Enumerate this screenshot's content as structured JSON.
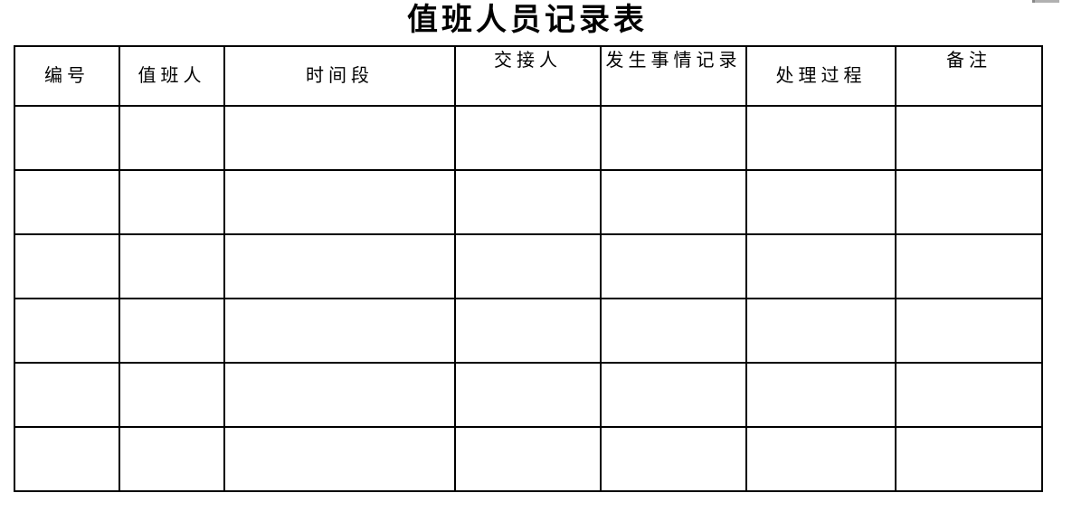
{
  "title": "值班人员记录表",
  "table": {
    "columns": [
      {
        "id": "number",
        "label": "编号"
      },
      {
        "id": "duty-person",
        "label": "值班人"
      },
      {
        "id": "time-period",
        "label": "时间段"
      },
      {
        "id": "handover-person",
        "label": "交接人"
      },
      {
        "id": "incident-record",
        "label": "发生事情记录"
      },
      {
        "id": "handling-process",
        "label": "处理过程"
      },
      {
        "id": "remarks",
        "label": "备注"
      }
    ],
    "body_row_count": 6
  },
  "colors": {
    "border": "#000000",
    "text": "#000000",
    "background": "#ffffff",
    "edge_artifact": "#b1b1b1"
  }
}
